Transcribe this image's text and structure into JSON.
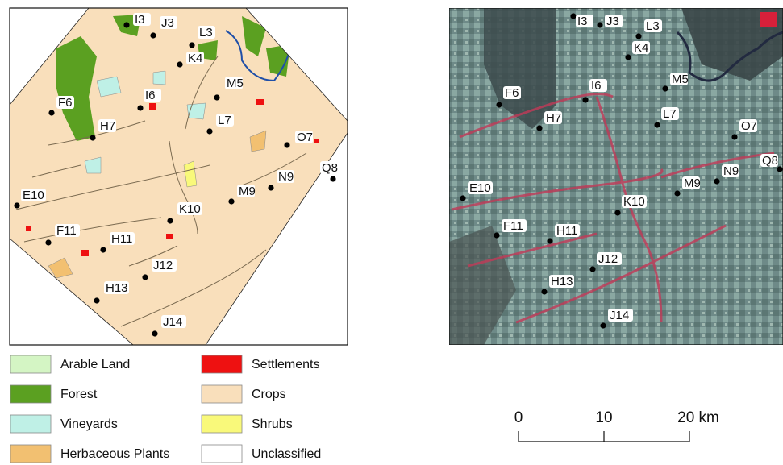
{
  "legend": [
    {
      "label": "Arable Land",
      "color": "#d4f5c4"
    },
    {
      "label": "Forest",
      "color": "#5ba021"
    },
    {
      "label": "Vineyards",
      "color": "#bff0e6"
    },
    {
      "label": "Herbaceous Plants",
      "color": "#f2c071"
    },
    {
      "label": "Settlements",
      "color": "#ee1111"
    },
    {
      "label": "Crops",
      "color": "#f9dfbb"
    },
    {
      "label": "Shrubs",
      "color": "#f9f97a"
    },
    {
      "label": "Unclassified",
      "color": "#ffffff"
    }
  ],
  "sample_points": [
    "I3",
    "J3",
    "L3",
    "K4",
    "M5",
    "I6",
    "F6",
    "H7",
    "L7",
    "O7",
    "N9",
    "Q8",
    "M9",
    "E10",
    "K10",
    "F11",
    "H11",
    "J12",
    "H13",
    "J14"
  ],
  "scale_bar": {
    "ticks": [
      "0",
      "10",
      "20 km"
    ]
  }
}
